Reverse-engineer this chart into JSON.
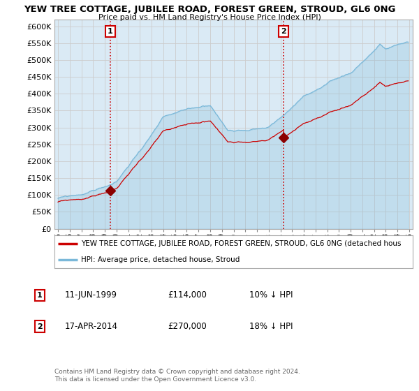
{
  "title": "YEW TREE COTTAGE, JUBILEE ROAD, FOREST GREEN, STROUD, GL6 0NG",
  "subtitle": "Price paid vs. HM Land Registry's House Price Index (HPI)",
  "legend_line1": "YEW TREE COTTAGE, JUBILEE ROAD, FOREST GREEN, STROUD, GL6 0NG (detached hous",
  "legend_line2": "HPI: Average price, detached house, Stroud",
  "annotation1_label": "1",
  "annotation1_date": "11-JUN-1999",
  "annotation1_price": "£114,000",
  "annotation1_hpi": "10% ↓ HPI",
  "annotation1_year": 1999.45,
  "annotation1_value": 114000,
  "annotation2_label": "2",
  "annotation2_date": "17-APR-2014",
  "annotation2_price": "£270,000",
  "annotation2_hpi": "18% ↓ HPI",
  "annotation2_year": 2014.29,
  "annotation2_value": 270000,
  "hpi_color": "#7ab8d9",
  "hpi_fill_color": "#daeaf5",
  "property_color": "#cc0000",
  "marker_color": "#8b0000",
  "vline_color": "#cc0000",
  "background_color": "#ffffff",
  "grid_color": "#cccccc",
  "ylim_min": 0,
  "ylim_max": 620000,
  "copyright_text": "Contains HM Land Registry data © Crown copyright and database right 2024.\nThis data is licensed under the Open Government Licence v3.0."
}
